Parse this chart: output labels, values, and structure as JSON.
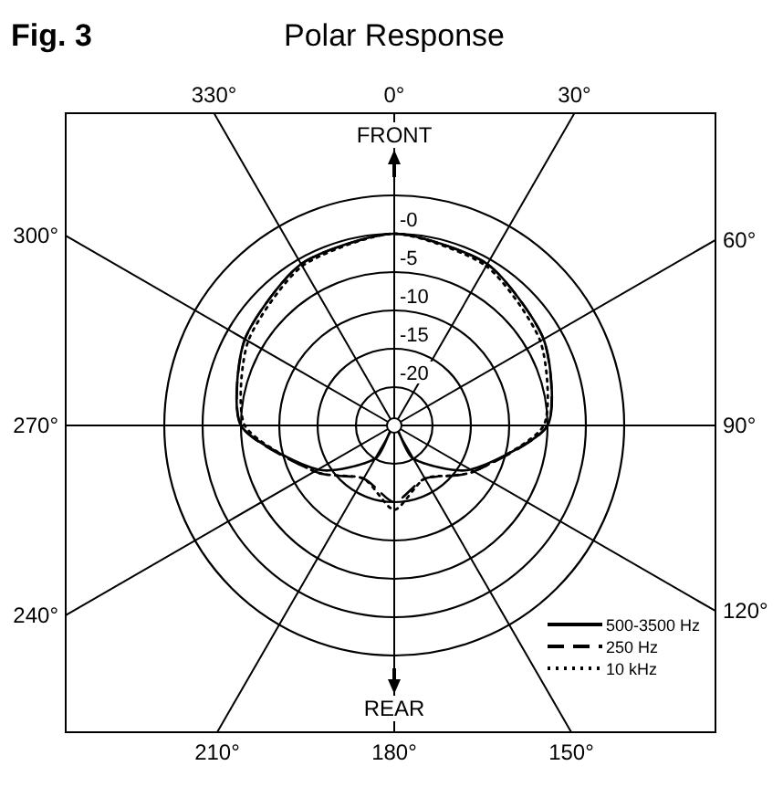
{
  "chart_data": {
    "type": "radar",
    "title": "Polar Response",
    "annotations": [
      "Fig. 3",
      "FRONT",
      "REAR"
    ],
    "categories": [
      "0°",
      "30°",
      "60°",
      "90°",
      "120°",
      "150°",
      "180°",
      "210°",
      "240°",
      "270°",
      "300°",
      "330°"
    ],
    "ylim": [
      -25,
      5
    ],
    "yticks": [
      {
        "value": -20,
        "label": "-20"
      },
      {
        "value": -15,
        "label": "-15"
      },
      {
        "value": -10,
        "label": "-10"
      },
      {
        "value": -5,
        "label": "-5"
      },
      {
        "value": 0,
        "label": "-0"
      }
    ],
    "grid": true,
    "legend": "bottom right",
    "series": [
      {
        "name": "500-3500 Hz",
        "color": "#000000",
        "line_style": "solid",
        "values": [
          0,
          -0.7,
          -2.5,
          -5,
          -13.5,
          -20,
          -25,
          -20,
          -13.5,
          -5,
          -2.5,
          -0.7
        ]
      },
      {
        "name": "250 Hz",
        "color": "#000000",
        "line_style": "dashed",
        "values": [
          0,
          -0.7,
          -2.5,
          -5,
          -13,
          -17,
          -15,
          -17,
          -13,
          -5,
          -2.5,
          -0.7
        ]
      },
      {
        "name": "10 kHz",
        "color": "#000000",
        "line_style": "dotted",
        "values": [
          0,
          -1,
          -3,
          -5.5,
          -13,
          -17,
          -14,
          -17,
          -13,
          -5.5,
          -3,
          -1
        ]
      }
    ]
  }
}
